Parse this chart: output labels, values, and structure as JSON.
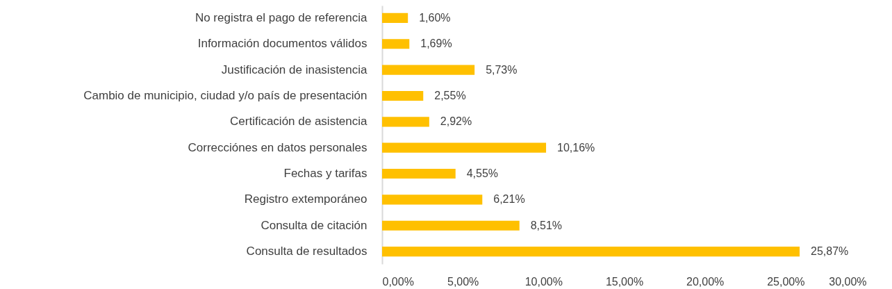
{
  "chart_data": {
    "type": "bar",
    "orientation": "horizontal",
    "categories": [
      "No registra el pago de referencia",
      "Información documentos válidos",
      "Justificación de inasistencia",
      "Cambio de municipio, ciudad y/o país de presentación",
      "Certificación de asistencia",
      "Correcciónes en datos personales",
      "Fechas y tarifas",
      "Registro extemporáneo",
      "Consulta de citación",
      "Consulta de resultados"
    ],
    "values": [
      1.6,
      1.69,
      5.73,
      2.55,
      2.92,
      10.16,
      4.55,
      6.21,
      8.51,
      25.87
    ],
    "color": "#ffc000",
    "value_labels": [
      "1,60%",
      "1,69%",
      "5,73%",
      "2,55%",
      "2,92%",
      "10,16%",
      "4,55%",
      "6,21%",
      "8,51%",
      "25,87%"
    ],
    "xlim": [
      0,
      30
    ],
    "xticks": [
      {
        "value": 0,
        "label": "0,00%"
      },
      {
        "value": 5,
        "label": "5,00%"
      },
      {
        "value": 10,
        "label": "10,00%"
      },
      {
        "value": 15,
        "label": "15,00%"
      },
      {
        "value": 20,
        "label": "20,00%"
      },
      {
        "value": 25,
        "label": "25,00%"
      },
      {
        "value": 30,
        "label": "30,00%"
      }
    ]
  }
}
